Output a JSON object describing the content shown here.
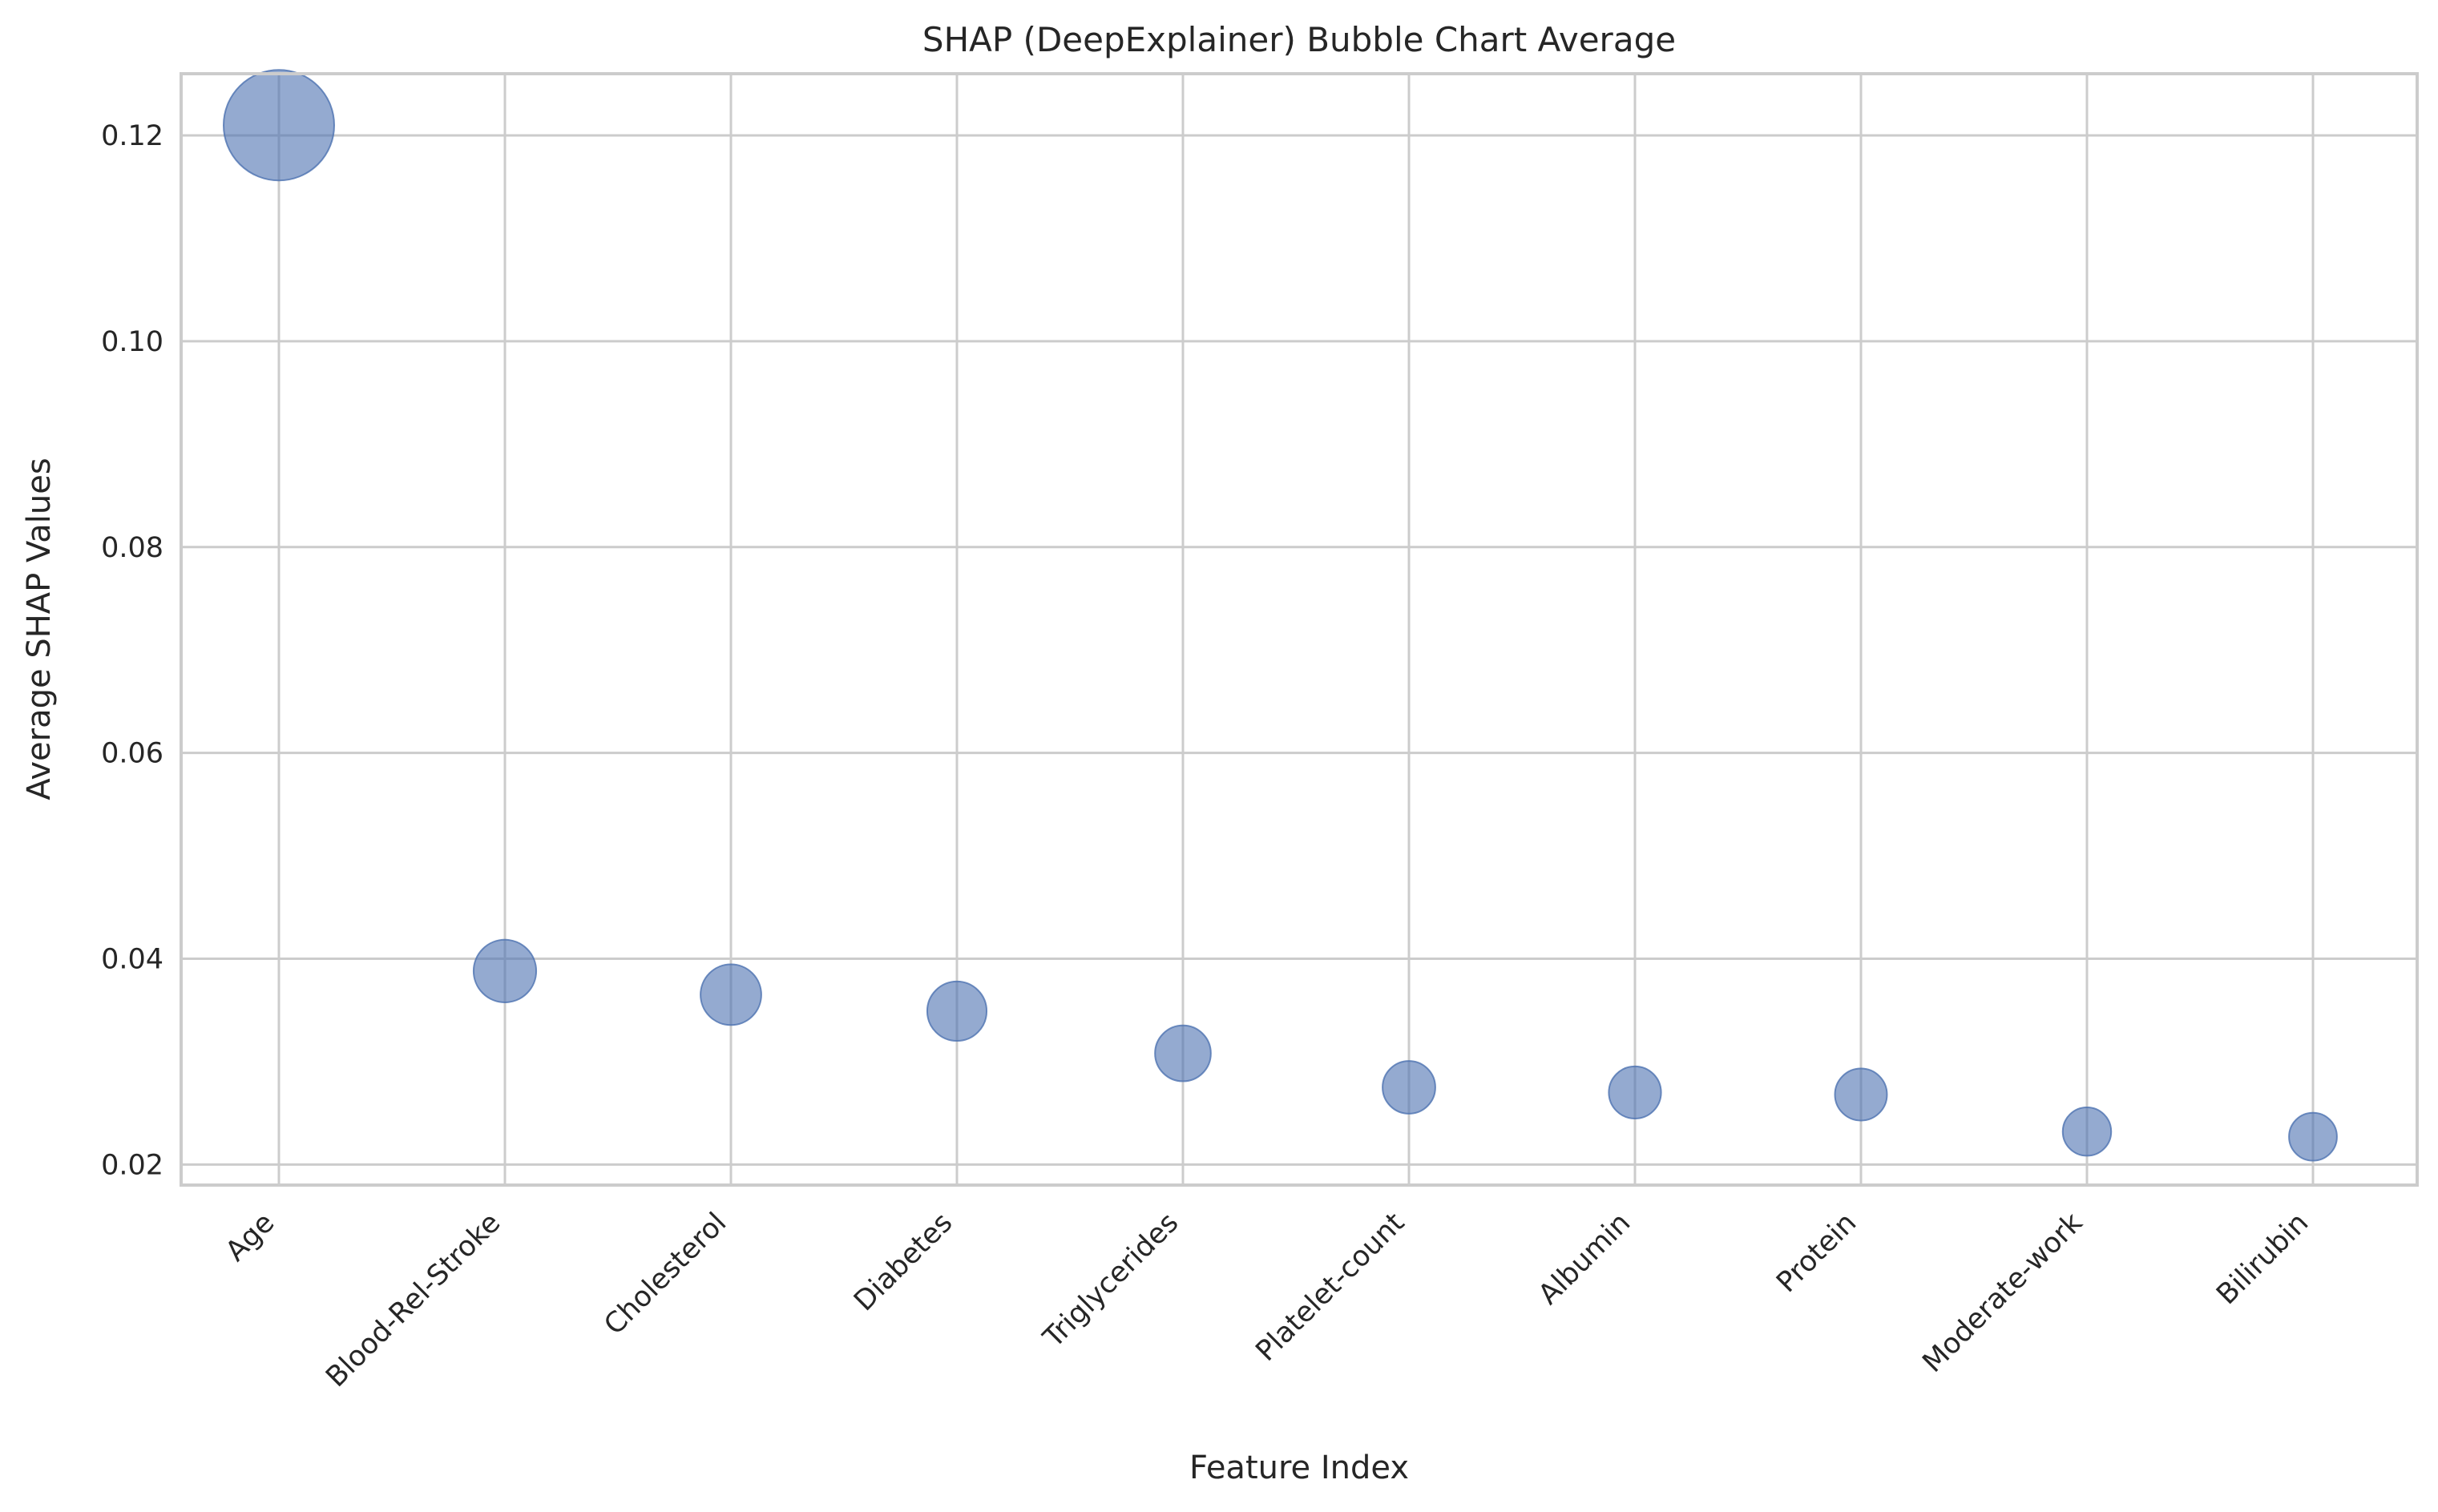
{
  "chart_data": {
    "type": "scatter",
    "title": "SHAP (DeepExplainer) Bubble Chart Average",
    "xlabel": "Feature Index",
    "ylabel": "Average SHAP Values",
    "categories": [
      "Age",
      "Blood-Rel-Stroke",
      "Cholesterol",
      "Diabetes",
      "Triglycerides",
      "Platelet-count",
      "Albumin",
      "Protein",
      "Moderate-work",
      "Bilirubin"
    ],
    "values": [
      0.121,
      0.0388,
      0.0365,
      0.0349,
      0.0308,
      0.0275,
      0.027,
      0.0268,
      0.0232,
      0.0227
    ],
    "ylim": [
      0.018,
      0.126
    ],
    "yticks": [
      0.02,
      0.04,
      0.06,
      0.08,
      0.1,
      0.12
    ],
    "ytick_labels": [
      "0.02",
      "0.04",
      "0.06",
      "0.08",
      "0.10",
      "0.12"
    ],
    "bubble_size": "proportional to value",
    "marker_color": "#4c72b0",
    "marker_alpha": 0.6,
    "grid": true,
    "legend": "none"
  }
}
